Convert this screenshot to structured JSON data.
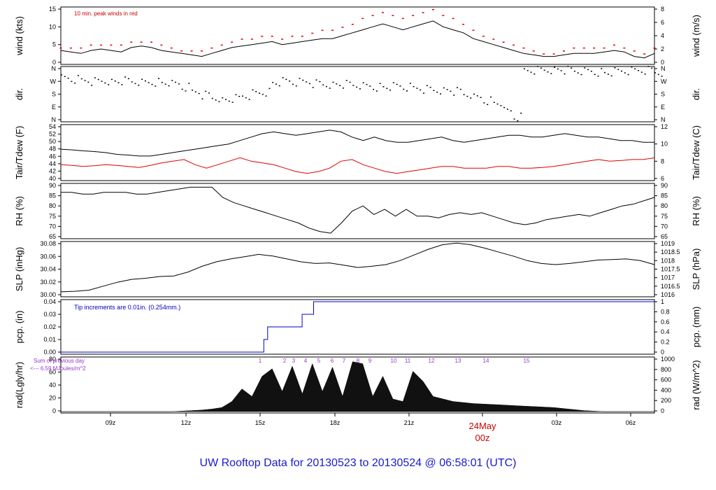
{
  "title": "UW Rooftop Data for 20130523  to  20130524 @ 06:58:01  (UTC)",
  "x_day_label": "24May",
  "x_day_sub": "00z",
  "x_ticks": [
    "09z",
    "12z",
    "15z",
    "18z",
    "21z",
    "03z",
    "06z"
  ],
  "chart_data": [
    {
      "id": "wind",
      "type": "line",
      "ylabel": "wind (kts)",
      "y2label": "wind (m/s)",
      "yticks": [
        "0",
        "5",
        "10",
        "15"
      ],
      "y2ticks": [
        "0",
        "2",
        "4",
        "6",
        "8"
      ],
      "note": "10 min. peak winds in red",
      "ylim": [
        0,
        18
      ],
      "series": [
        {
          "name": "wind",
          "values": [
            4,
            3.5,
            3,
            4,
            4.5,
            4,
            3.5,
            5,
            5.5,
            5,
            4,
            3.5,
            3,
            2.5,
            2,
            3,
            4,
            5,
            5.5,
            6,
            6.5,
            7,
            6,
            6.5,
            7,
            7.5,
            8,
            8,
            9,
            10,
            11,
            12,
            13,
            12,
            11,
            12,
            13,
            14,
            12,
            11,
            10,
            8,
            7,
            6,
            5,
            4,
            3,
            2.5,
            2,
            2,
            2.5,
            3,
            3,
            3,
            3.5,
            4,
            3.5,
            2,
            1.5,
            3
          ]
        }
      ],
      "peak_values": [
        5,
        5,
        5,
        6,
        6,
        6,
        6,
        7,
        7,
        7,
        6,
        5,
        4,
        4,
        4,
        5,
        6,
        7,
        8,
        8,
        9,
        9,
        8,
        9,
        9,
        10,
        11,
        11,
        12,
        13,
        15,
        16,
        17,
        16,
        15,
        16,
        17,
        18,
        16,
        15,
        13,
        11,
        9,
        8,
        7,
        6,
        5,
        4,
        3,
        3,
        4,
        5,
        5,
        5,
        5,
        6,
        5,
        4,
        3,
        5
      ]
    },
    {
      "id": "dir",
      "type": "scatter",
      "ylabel": "dir.",
      "y2label": "dir.",
      "yticks": [
        "N",
        "E",
        "S",
        "W",
        "N"
      ],
      "y2ticks": [
        "N",
        "E",
        "S",
        "W",
        "N"
      ],
      "ylim": [
        0,
        360
      ],
      "values": [
        290,
        285,
        280,
        275,
        280,
        270,
        275,
        270,
        265,
        270,
        260,
        250,
        230,
        200,
        180,
        160,
        140,
        150,
        170,
        190,
        200,
        260,
        270,
        265,
        270,
        260,
        255,
        250,
        250,
        245,
        240,
        235,
        230,
        235,
        230,
        225,
        220,
        215,
        210,
        200,
        180,
        160,
        140,
        120,
        60,
        20,
        350,
        355,
        358,
        355,
        350,
        345,
        345,
        340,
        330,
        340,
        345,
        350,
        355,
        340
      ]
    },
    {
      "id": "temp",
      "type": "line",
      "ylabel": "Tair/Tdew (F)",
      "y2label": "Tair/Tdew (C)",
      "yticks": [
        "40",
        "42",
        "44",
        "46",
        "48",
        "50",
        "52",
        "54"
      ],
      "y2ticks": [
        "6",
        "8",
        "10",
        "12"
      ],
      "ylim": [
        40,
        55
      ],
      "series": [
        {
          "name": "Tair",
          "values": [
            48.5,
            48.3,
            48,
            47.8,
            47.5,
            47,
            46.8,
            46.5,
            46.5,
            47,
            47.5,
            48,
            48.5,
            49,
            49.5,
            50,
            51,
            52,
            53,
            53.5,
            53,
            52.5,
            53,
            53.5,
            54,
            53.5,
            52,
            51,
            52,
            51,
            50.5,
            50.5,
            51,
            51.5,
            52,
            51,
            50.5,
            51,
            51.5,
            52,
            52.5,
            52.5,
            52,
            52,
            52.5,
            53,
            52.5,
            52,
            52,
            51.5,
            51,
            51,
            50.5,
            50.5
          ]
        },
        {
          "name": "Tdew",
          "values": [
            44,
            43.8,
            43.5,
            43.7,
            44,
            43.8,
            43.5,
            43.2,
            43.8,
            44.5,
            45,
            45.5,
            44,
            43,
            44,
            45,
            46,
            45,
            44.5,
            44,
            43,
            42,
            41.5,
            42,
            43,
            45,
            45.5,
            44,
            43,
            42,
            41.5,
            42,
            42.5,
            43,
            43.5,
            43.5,
            43,
            43,
            43,
            43.5,
            43.5,
            43,
            43,
            43.2,
            43.5,
            44,
            44.5,
            45,
            45.5,
            45,
            45.2,
            45.5,
            45.5,
            46
          ]
        }
      ]
    },
    {
      "id": "rh",
      "type": "line",
      "ylabel": "RH (%)",
      "y2label": "RH (%)",
      "yticks": [
        "65",
        "70",
        "75",
        "80",
        "85",
        "90"
      ],
      "y2ticks": [
        "65",
        "70",
        "75",
        "80",
        "85",
        "90"
      ],
      "ylim": [
        62,
        92
      ],
      "series": [
        {
          "name": "RH",
          "values": [
            88,
            88,
            87,
            87,
            88,
            88,
            88,
            87,
            87,
            88,
            89,
            90,
            91,
            91,
            91,
            85,
            82,
            80,
            78,
            76,
            74,
            72,
            70,
            67,
            65,
            64,
            70,
            77,
            80,
            75,
            78,
            74,
            78,
            74,
            74,
            73,
            75,
            76,
            75,
            76,
            74,
            72,
            70,
            69,
            70,
            72,
            73,
            74,
            75,
            74,
            76,
            78,
            80,
            81,
            83,
            85
          ]
        }
      ]
    },
    {
      "id": "slp",
      "type": "line",
      "ylabel": "SLP (inHg)",
      "y2label": "SLP (hPa)",
      "yticks": [
        "30.00",
        "30.02",
        "30.04",
        "30.06",
        "30.08"
      ],
      "y2ticks": [
        "1016",
        "1016.5",
        "1017",
        "1017.5",
        "1018",
        "1018.5",
        "1019"
      ],
      "ylim": [
        29.995,
        30.085
      ],
      "series": [
        {
          "name": "SLP",
          "values": [
            30.0,
            30.001,
            30.003,
            30.01,
            30.017,
            30.022,
            30.024,
            30.027,
            30.028,
            30.035,
            30.045,
            30.053,
            30.058,
            30.062,
            30.066,
            30.063,
            30.058,
            30.053,
            30.05,
            30.051,
            30.047,
            30.043,
            30.045,
            30.048,
            30.055,
            30.065,
            30.075,
            30.083,
            30.086,
            30.083,
            30.077,
            30.07,
            30.063,
            30.055,
            30.05,
            30.048,
            30.05,
            30.053,
            30.056,
            30.057,
            30.058,
            30.055,
            30.048
          ]
        }
      ]
    },
    {
      "id": "pcp",
      "type": "line",
      "ylabel": "pcp. (in)",
      "y2label": "pcp. (mm)",
      "yticks": [
        "0.00",
        "0.01",
        "0.02",
        "0.03",
        "0.04"
      ],
      "y2ticks": [
        "0",
        "0.2",
        "0.4",
        "0.6",
        "0.8",
        "1"
      ],
      "note": "Tip increments are 0.01in. (0.254mm.)",
      "ylim": [
        0,
        0.04
      ],
      "series": [
        {
          "name": "pcp",
          "steps": [
            [
              0,
              0
            ],
            [
              10.6,
              0.01
            ],
            [
              10.8,
              0.02
            ],
            [
              12.6,
              0.03
            ],
            [
              13.2,
              0.04
            ],
            [
              31,
              0.04
            ]
          ]
        }
      ]
    },
    {
      "id": "rad",
      "type": "area",
      "ylabel": "rad(Lgly/hr)",
      "y2label": "rad (W/m^2)",
      "yticks": [
        "0",
        "20",
        "40",
        "60",
        "80"
      ],
      "y2ticks": [
        "0",
        "200",
        "400",
        "600",
        "800",
        "1000"
      ],
      "note1": "Sum of previous day",
      "note2": "<--- 6.59 MJoules/m^2",
      "markers": [
        "1",
        "2",
        "3",
        "4",
        "5",
        "6",
        "7",
        "8",
        "9",
        "10",
        "11",
        "12",
        "13",
        "14",
        "15"
      ],
      "ylim": [
        0,
        100
      ],
      "values": [
        0,
        0,
        0,
        0,
        0,
        0,
        0,
        0,
        0,
        0,
        0,
        0,
        1,
        2,
        3,
        5,
        8,
        20,
        45,
        30,
        70,
        85,
        40,
        90,
        35,
        95,
        40,
        88,
        30,
        99,
        95,
        30,
        70,
        25,
        20,
        80,
        60,
        30,
        25,
        20,
        18,
        16,
        15,
        14,
        13,
        12,
        11,
        10,
        9,
        8,
        6,
        4,
        2,
        1,
        0,
        0,
        0,
        0,
        0,
        0
      ]
    }
  ]
}
